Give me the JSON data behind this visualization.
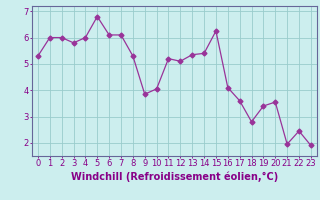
{
  "x": [
    0,
    1,
    2,
    3,
    4,
    5,
    6,
    7,
    8,
    9,
    10,
    11,
    12,
    13,
    14,
    15,
    16,
    17,
    18,
    19,
    20,
    21,
    22,
    23
  ],
  "y": [
    5.3,
    6.0,
    6.0,
    5.8,
    6.0,
    6.8,
    6.1,
    6.1,
    5.3,
    3.85,
    4.05,
    5.2,
    5.1,
    5.35,
    5.4,
    6.25,
    4.1,
    3.6,
    2.8,
    3.4,
    3.55,
    1.95,
    2.45,
    1.9
  ],
  "line_color": "#993399",
  "marker": "D",
  "marker_size": 2.5,
  "bg_color": "#cceeee",
  "grid_color": "#99cccc",
  "xlabel": "Windchill (Refroidissement éolien,°C)",
  "xlabel_fontsize": 7,
  "tick_fontsize": 6,
  "ylim": [
    1.5,
    7.2
  ],
  "yticks": [
    2,
    3,
    4,
    5,
    6,
    7
  ],
  "axis_color": "#880088",
  "spine_color": "#666699"
}
